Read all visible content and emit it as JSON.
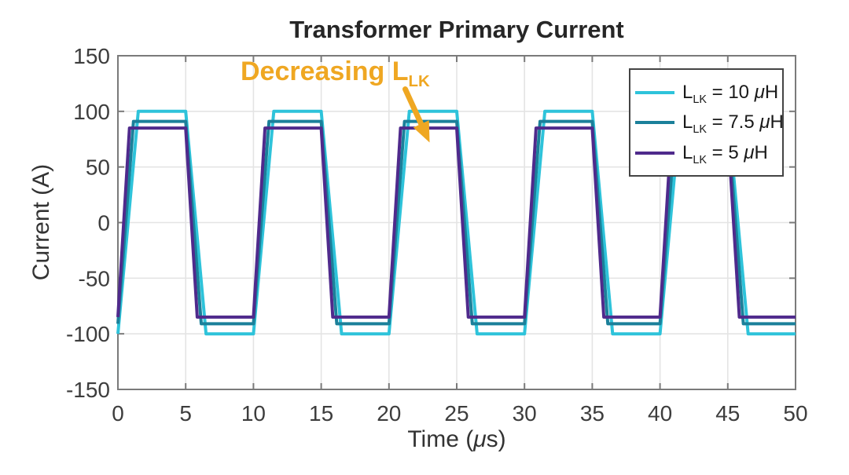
{
  "figure": {
    "background": "#ffffff"
  },
  "chart_data": {
    "type": "line",
    "title": "Transformer Primary Current",
    "xlabel": "Time (μs)",
    "ylabel": "Current (A)",
    "xlim": [
      0,
      50
    ],
    "ylim": [
      -150,
      150
    ],
    "x_ticks": [
      0,
      5,
      10,
      15,
      20,
      25,
      30,
      35,
      40,
      45,
      50
    ],
    "y_ticks": [
      -150,
      -100,
      -50,
      0,
      50,
      100,
      150
    ],
    "grid": true,
    "legend_position": "northeast",
    "waveform_model": {
      "description": "Trapezoidal square waves: rise starts at t=10k us, flat top until 10k+5, fall starts at 10k+5, flat bottom until next cycle start",
      "period_us": 10,
      "half_period_us": 5,
      "cycles": 5
    },
    "series": [
      {
        "name": "L_LK = 10 μH",
        "inductance_uH": 10,
        "color": "#2EC3DA",
        "amplitude_A": 100,
        "rise_time_us": 1.5
      },
      {
        "name": "L_LK = 7.5 μH",
        "inductance_uH": 7.5,
        "color": "#1B809A",
        "amplitude_A": 91,
        "rise_time_us": 1.15
      },
      {
        "name": "L_LK = 5 μH",
        "inductance_uH": 5,
        "color": "#4F2A8C",
        "amplitude_A": 85,
        "rise_time_us": 0.85
      }
    ]
  },
  "axis": {
    "xlabel_pre": "Time (",
    "xlabel_mu": "μ",
    "xlabel_post": "s)",
    "ylabel": "Current (A)",
    "tick_label_color": "#3d3d3d",
    "box_color": "#7a7a7a",
    "grid_color": "#e4e4e4"
  },
  "legend": {
    "items": [
      {
        "base": "L",
        "sub": "LK",
        "mid": " = 10 ",
        "mu": "μ",
        "end": "H"
      },
      {
        "base": "L",
        "sub": "LK",
        "mid": " = 7.5 ",
        "mu": "μ",
        "end": "H"
      },
      {
        "base": "L",
        "sub": "LK",
        "mid": " = 5 ",
        "mu": "μ",
        "end": "H"
      }
    ]
  },
  "annotation": {
    "text_main": "Decreasing L",
    "text_sub": "LK",
    "color": "#EFA722",
    "arrow_data": {
      "t1_us": 21.2,
      "i1_A": 120,
      "t2_us": 23.0,
      "i2_A": 72
    }
  }
}
